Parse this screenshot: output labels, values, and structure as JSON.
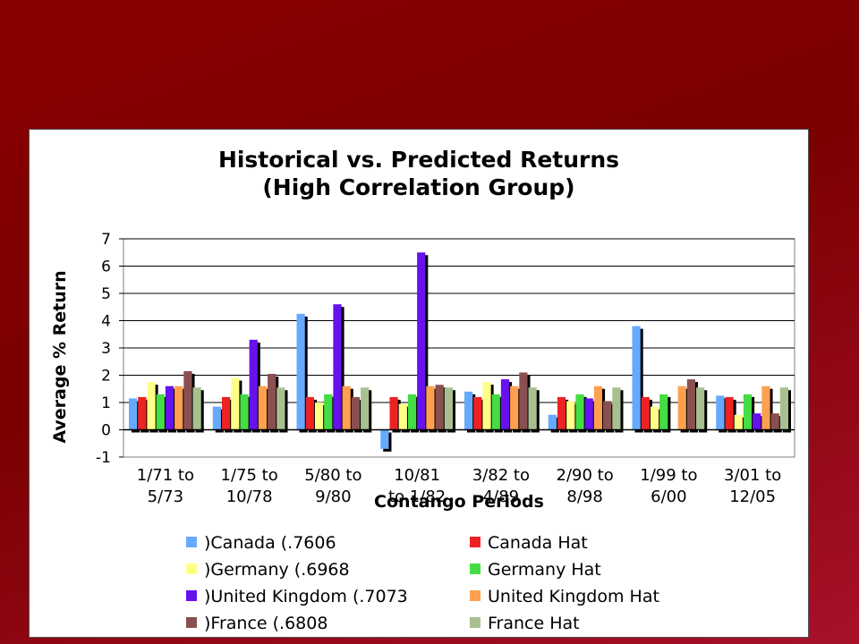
{
  "chart_data": {
    "type": "bar",
    "title": [
      "Historical vs. Predicted Returns",
      "(High Correlation Group)"
    ],
    "xlabel": "Contango Periods",
    "ylabel": "Average % Return",
    "ylim": [
      -1,
      7
    ],
    "yticks": [
      -1,
      0,
      1,
      2,
      3,
      4,
      5,
      6,
      7
    ],
    "grid": true,
    "legend_position": "bottom",
    "categories": [
      [
        "1/71 to",
        "5/73"
      ],
      [
        "1/75 to",
        "10/78"
      ],
      [
        "5/80 to",
        "9/80"
      ],
      [
        "10/81",
        "to 1/82"
      ],
      [
        "3/82 to",
        "4/89"
      ],
      [
        "2/90 to",
        "8/98"
      ],
      [
        "1/99 to",
        "6/00"
      ],
      [
        "3/01 to",
        "12/05"
      ]
    ],
    "series": [
      {
        "name": ")Canada (.7606",
        "color": "#66aaff",
        "values": [
          1.15,
          0.85,
          4.25,
          -0.7,
          1.4,
          0.55,
          3.8,
          1.25
        ]
      },
      {
        "name": "Canada Hat",
        "color": "#ee2222",
        "values": [
          1.2,
          1.2,
          1.2,
          1.2,
          1.2,
          1.2,
          1.2,
          1.2
        ]
      },
      {
        "name": ")Germany (.6968",
        "color": "#ffff88",
        "values": [
          1.75,
          1.9,
          1.0,
          0.95,
          1.75,
          1.05,
          0.85,
          0.55
        ]
      },
      {
        "name": "Germany Hat",
        "color": "#44dd44",
        "values": [
          1.3,
          1.3,
          1.3,
          1.3,
          1.3,
          1.3,
          1.3,
          1.3
        ]
      },
      {
        "name": ")United Kingdom (.7073",
        "color": "#6611ee",
        "values": [
          1.6,
          3.3,
          4.6,
          6.5,
          1.85,
          1.15,
          0.0,
          0.6
        ]
      },
      {
        "name": "United Kingdom Hat",
        "color": "#ffa050",
        "values": [
          1.6,
          1.6,
          1.6,
          1.6,
          1.6,
          1.6,
          1.6,
          1.6
        ]
      },
      {
        "name": ")France (.6808",
        "color": "#8a5050",
        "values": [
          2.15,
          2.05,
          1.2,
          1.65,
          2.1,
          1.05,
          1.85,
          0.6
        ]
      },
      {
        "name": "France Hat",
        "color": "#a8c090",
        "values": [
          1.55,
          1.55,
          1.55,
          1.55,
          1.55,
          1.55,
          1.55,
          1.55
        ]
      }
    ]
  }
}
